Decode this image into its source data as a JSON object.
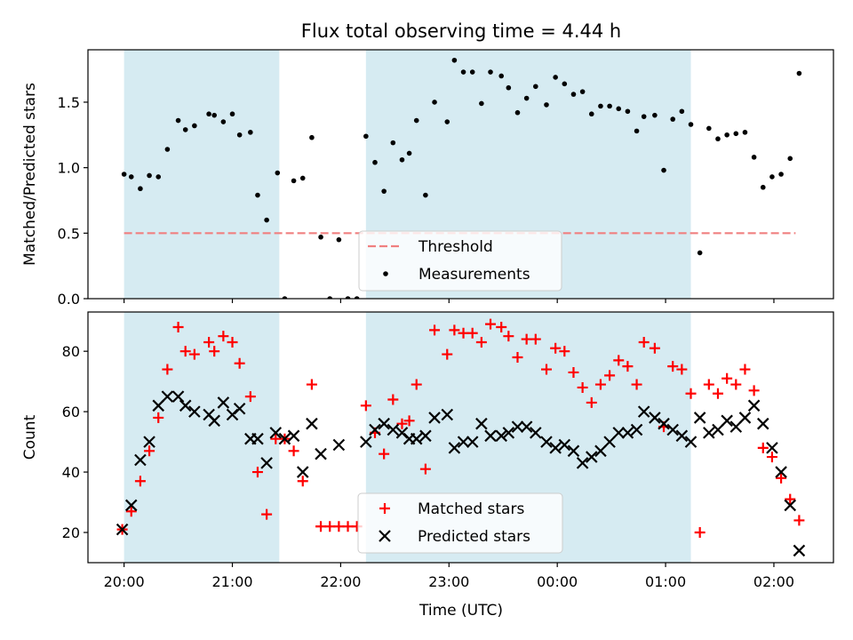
{
  "figure": {
    "title": "Flux total observing time = 4.44 h",
    "xlabel": "Time (UTC)"
  },
  "colors": {
    "shade": "#add8e6",
    "threshold": "#f08080",
    "matched": "#ff0000",
    "predicted": "#000000",
    "measurement": "#000000"
  },
  "chart_data": [
    {
      "type": "scatter",
      "ylabel": "Matched/Predicted stars",
      "xlim": [
        "19:40",
        "02:33"
      ],
      "ylim": [
        0,
        1.9
      ],
      "x_ticks": [
        "20:00",
        "21:00",
        "22:00",
        "23:00",
        "00:00",
        "01:00",
        "02:00"
      ],
      "y_ticks": [
        "0.0",
        "0.5",
        "1.0",
        "1.5"
      ],
      "shaded_intervals": [
        [
          "20:00",
          "21:26"
        ],
        [
          "22:14",
          "01:14"
        ]
      ],
      "threshold": {
        "name": "Threshold",
        "y": 0.5,
        "x_range": [
          "20:00",
          "02:12"
        ]
      },
      "series": [
        {
          "name": "Measurements",
          "points": [
            [
              "20:00",
              0.95
            ],
            [
              "20:04",
              0.93
            ],
            [
              "20:09",
              0.84
            ],
            [
              "20:14",
              0.94
            ],
            [
              "20:19",
              0.93
            ],
            [
              "20:24",
              1.14
            ],
            [
              "20:30",
              1.36
            ],
            [
              "20:34",
              1.29
            ],
            [
              "20:39",
              1.32
            ],
            [
              "20:47",
              1.41
            ],
            [
              "20:50",
              1.4
            ],
            [
              "20:55",
              1.35
            ],
            [
              "21:00",
              1.41
            ],
            [
              "21:04",
              1.25
            ],
            [
              "21:10",
              1.27
            ],
            [
              "21:14",
              0.79
            ],
            [
              "21:19",
              0.6
            ],
            [
              "21:25",
              0.96
            ],
            [
              "21:29",
              0.0
            ],
            [
              "21:34",
              0.9
            ],
            [
              "21:39",
              0.92
            ],
            [
              "21:44",
              1.23
            ],
            [
              "21:49",
              0.47
            ],
            [
              "21:54",
              0.0
            ],
            [
              "21:59",
              0.45
            ],
            [
              "22:04",
              0.0
            ],
            [
              "22:09",
              0.0
            ],
            [
              "22:14",
              1.24
            ],
            [
              "22:19",
              1.04
            ],
            [
              "22:24",
              0.82
            ],
            [
              "22:29",
              1.19
            ],
            [
              "22:34",
              1.06
            ],
            [
              "22:38",
              1.11
            ],
            [
              "22:42",
              1.36
            ],
            [
              "22:47",
              0.79
            ],
            [
              "22:52",
              1.5
            ],
            [
              "22:59",
              1.35
            ],
            [
              "23:03",
              1.82
            ],
            [
              "23:08",
              1.73
            ],
            [
              "23:13",
              1.73
            ],
            [
              "23:18",
              1.49
            ],
            [
              "23:23",
              1.73
            ],
            [
              "23:29",
              1.7
            ],
            [
              "23:33",
              1.61
            ],
            [
              "23:38",
              1.42
            ],
            [
              "23:43",
              1.53
            ],
            [
              "23:48",
              1.62
            ],
            [
              "23:54",
              1.48
            ],
            [
              "23:59",
              1.69
            ],
            [
              "00:04",
              1.64
            ],
            [
              "00:09",
              1.56
            ],
            [
              "00:14",
              1.58
            ],
            [
              "00:19",
              1.41
            ],
            [
              "00:24",
              1.47
            ],
            [
              "00:29",
              1.47
            ],
            [
              "00:34",
              1.45
            ],
            [
              "00:39",
              1.43
            ],
            [
              "00:44",
              1.28
            ],
            [
              "00:48",
              1.39
            ],
            [
              "00:54",
              1.4
            ],
            [
              "00:59",
              0.98
            ],
            [
              "01:04",
              1.37
            ],
            [
              "01:09",
              1.43
            ],
            [
              "01:14",
              1.33
            ],
            [
              "01:19",
              0.35
            ],
            [
              "01:24",
              1.3
            ],
            [
              "01:29",
              1.22
            ],
            [
              "01:34",
              1.25
            ],
            [
              "01:39",
              1.26
            ],
            [
              "01:44",
              1.27
            ],
            [
              "01:49",
              1.08
            ],
            [
              "01:54",
              0.85
            ],
            [
              "01:59",
              0.93
            ],
            [
              "02:04",
              0.95
            ],
            [
              "02:09",
              1.07
            ],
            [
              "02:14",
              1.72
            ]
          ]
        }
      ]
    },
    {
      "type": "scatter",
      "ylabel": "Count",
      "xlim": [
        "19:40",
        "02:33"
      ],
      "ylim": [
        10,
        93
      ],
      "x_ticks": [
        "20:00",
        "21:00",
        "22:00",
        "23:00",
        "00:00",
        "01:00",
        "02:00"
      ],
      "y_ticks": [
        "20",
        "40",
        "60",
        "80"
      ],
      "shaded_intervals": [
        [
          "20:00",
          "21:26"
        ],
        [
          "22:14",
          "01:14"
        ]
      ],
      "series": [
        {
          "name": "Matched stars",
          "marker": "plus",
          "points": [
            [
              "19:59",
              21
            ],
            [
              "20:04",
              27
            ],
            [
              "20:09",
              37
            ],
            [
              "20:14",
              47
            ],
            [
              "20:19",
              58
            ],
            [
              "20:24",
              74
            ],
            [
              "20:30",
              88
            ],
            [
              "20:34",
              80
            ],
            [
              "20:39",
              79
            ],
            [
              "20:47",
              83
            ],
            [
              "20:50",
              80
            ],
            [
              "20:55",
              85
            ],
            [
              "21:00",
              83
            ],
            [
              "21:04",
              76
            ],
            [
              "21:10",
              65
            ],
            [
              "21:14",
              40
            ],
            [
              "21:19",
              26
            ],
            [
              "21:24",
              51
            ],
            [
              "21:29",
              51
            ],
            [
              "21:34",
              47
            ],
            [
              "21:39",
              37
            ],
            [
              "21:44",
              69
            ],
            [
              "21:49",
              22
            ],
            [
              "21:54",
              22
            ],
            [
              "21:59",
              22
            ],
            [
              "22:04",
              22
            ],
            [
              "22:09",
              22
            ],
            [
              "22:14",
              62
            ],
            [
              "22:19",
              53
            ],
            [
              "22:24",
              46
            ],
            [
              "22:29",
              64
            ],
            [
              "22:34",
              56
            ],
            [
              "22:38",
              57
            ],
            [
              "22:42",
              69
            ],
            [
              "22:47",
              41
            ],
            [
              "22:52",
              87
            ],
            [
              "22:59",
              79
            ],
            [
              "23:03",
              87
            ],
            [
              "23:08",
              86
            ],
            [
              "23:13",
              86
            ],
            [
              "23:18",
              83
            ],
            [
              "23:23",
              89
            ],
            [
              "23:29",
              88
            ],
            [
              "23:33",
              85
            ],
            [
              "23:38",
              78
            ],
            [
              "23:43",
              84
            ],
            [
              "23:48",
              84
            ],
            [
              "23:54",
              74
            ],
            [
              "23:59",
              81
            ],
            [
              "00:04",
              80
            ],
            [
              "00:09",
              73
            ],
            [
              "00:14",
              68
            ],
            [
              "00:19",
              63
            ],
            [
              "00:24",
              69
            ],
            [
              "00:29",
              72
            ],
            [
              "00:34",
              77
            ],
            [
              "00:39",
              75
            ],
            [
              "00:44",
              69
            ],
            [
              "00:48",
              83
            ],
            [
              "00:54",
              81
            ],
            [
              "00:59",
              55
            ],
            [
              "01:04",
              75
            ],
            [
              "01:09",
              74
            ],
            [
              "01:14",
              66
            ],
            [
              "01:19",
              20
            ],
            [
              "01:24",
              69
            ],
            [
              "01:29",
              66
            ],
            [
              "01:34",
              71
            ],
            [
              "01:39",
              69
            ],
            [
              "01:44",
              74
            ],
            [
              "01:49",
              67
            ],
            [
              "01:54",
              48
            ],
            [
              "01:59",
              45
            ],
            [
              "02:04",
              38
            ],
            [
              "02:09",
              31
            ],
            [
              "02:14",
              24
            ]
          ]
        },
        {
          "name": "Predicted stars",
          "marker": "x",
          "points": [
            [
              "19:59",
              21
            ],
            [
              "20:04",
              29
            ],
            [
              "20:09",
              44
            ],
            [
              "20:14",
              50
            ],
            [
              "20:19",
              62
            ],
            [
              "20:24",
              65
            ],
            [
              "20:30",
              65
            ],
            [
              "20:34",
              62
            ],
            [
              "20:39",
              60
            ],
            [
              "20:47",
              59
            ],
            [
              "20:50",
              57
            ],
            [
              "20:55",
              63
            ],
            [
              "21:00",
              59
            ],
            [
              "21:04",
              61
            ],
            [
              "21:10",
              51
            ],
            [
              "21:14",
              51
            ],
            [
              "21:19",
              43
            ],
            [
              "21:24",
              53
            ],
            [
              "21:29",
              51
            ],
            [
              "21:34",
              52
            ],
            [
              "21:39",
              40
            ],
            [
              "21:44",
              56
            ],
            [
              "21:49",
              46
            ],
            [
              "21:59",
              49
            ],
            [
              "22:14",
              50
            ],
            [
              "22:19",
              54
            ],
            [
              "22:24",
              56
            ],
            [
              "22:29",
              54
            ],
            [
              "22:34",
              53
            ],
            [
              "22:38",
              51
            ],
            [
              "22:42",
              51
            ],
            [
              "22:47",
              52
            ],
            [
              "22:52",
              58
            ],
            [
              "22:59",
              59
            ],
            [
              "23:03",
              48
            ],
            [
              "23:08",
              50
            ],
            [
              "23:13",
              50
            ],
            [
              "23:18",
              56
            ],
            [
              "23:23",
              52
            ],
            [
              "23:29",
              52
            ],
            [
              "23:33",
              53
            ],
            [
              "23:38",
              55
            ],
            [
              "23:43",
              55
            ],
            [
              "23:48",
              53
            ],
            [
              "23:54",
              50
            ],
            [
              "23:59",
              48
            ],
            [
              "00:04",
              49
            ],
            [
              "00:09",
              47
            ],
            [
              "00:14",
              43
            ],
            [
              "00:19",
              45
            ],
            [
              "00:24",
              47
            ],
            [
              "00:29",
              50
            ],
            [
              "00:34",
              53
            ],
            [
              "00:39",
              53
            ],
            [
              "00:44",
              54
            ],
            [
              "00:48",
              60
            ],
            [
              "00:54",
              58
            ],
            [
              "00:59",
              56
            ],
            [
              "01:04",
              54
            ],
            [
              "01:09",
              52
            ],
            [
              "01:14",
              50
            ],
            [
              "01:19",
              58
            ],
            [
              "01:24",
              53
            ],
            [
              "01:29",
              54
            ],
            [
              "01:34",
              57
            ],
            [
              "01:39",
              55
            ],
            [
              "01:44",
              58
            ],
            [
              "01:49",
              62
            ],
            [
              "01:54",
              56
            ],
            [
              "01:59",
              48
            ],
            [
              "02:04",
              40
            ],
            [
              "02:09",
              29
            ],
            [
              "02:14",
              14
            ]
          ]
        }
      ]
    }
  ]
}
